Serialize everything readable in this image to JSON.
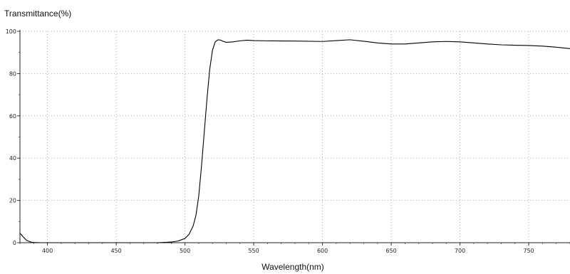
{
  "chart_data": {
    "type": "line",
    "ylabel": "Transmittance(%)",
    "xlabel": "Wavelength(nm)",
    "xlim": [
      380,
      780
    ],
    "ylim": [
      0,
      100
    ],
    "x_ticks": [
      400,
      450,
      500,
      550,
      600,
      650,
      700,
      750
    ],
    "y_ticks": [
      0,
      20,
      40,
      60,
      80,
      100
    ],
    "grid": true,
    "grid_style": "dotted",
    "line_color": "#000000",
    "series": [
      {
        "x": [
          380,
          382,
          385,
          388,
          390,
          395,
          400,
          420,
          450,
          480,
          490,
          495,
          500,
          503,
          506,
          508,
          510,
          512,
          514,
          516,
          518,
          520,
          522,
          524,
          526,
          528,
          530,
          535,
          540,
          545,
          550,
          560,
          580,
          600,
          610,
          620,
          630,
          640,
          650,
          660,
          670,
          680,
          690,
          700,
          710,
          720,
          730,
          740,
          750,
          760,
          770,
          780
        ],
        "y": [
          4.5,
          3.0,
          1.0,
          0.3,
          0.1,
          0.0,
          0.0,
          0.0,
          0.0,
          0.0,
          0.3,
          0.8,
          2.0,
          4.0,
          8.0,
          13.0,
          22.0,
          36.0,
          52.0,
          68.0,
          82.0,
          91.0,
          95.0,
          96.0,
          95.8,
          95.2,
          94.8,
          95.0,
          95.5,
          95.8,
          95.6,
          95.5,
          95.4,
          95.2,
          95.6,
          96.0,
          95.3,
          94.5,
          94.0,
          94.0,
          94.5,
          95.0,
          95.2,
          95.0,
          94.5,
          94.0,
          93.6,
          93.4,
          93.3,
          93.0,
          92.5,
          91.8
        ]
      }
    ]
  }
}
